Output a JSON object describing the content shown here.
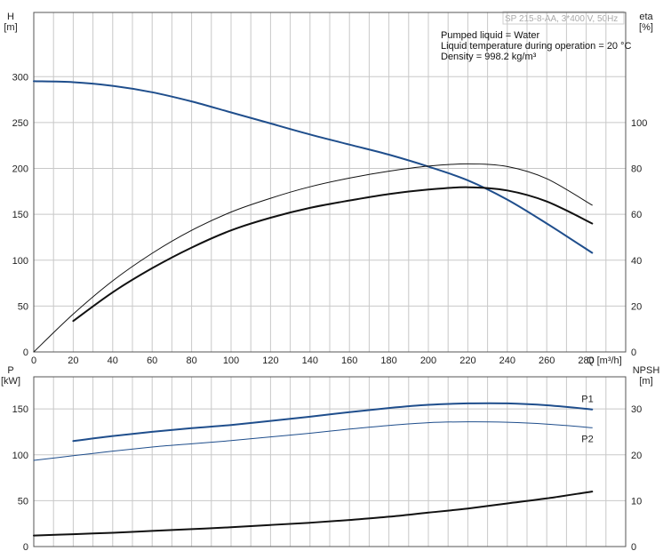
{
  "title_box": "SP 215-8-AA, 3*400 V, 50Hz",
  "info_lines": [
    "Pumped liquid = Water",
    "Liquid temperature during operation = 20 °C",
    "Density = 998.2 kg/m³"
  ],
  "colors": {
    "blue": "#1f4e8c",
    "black": "#111111",
    "grid": "#c8c8c8"
  },
  "chart_data": [
    {
      "type": "line",
      "x_label": "Q [m³/h]",
      "x_ticks": [
        0,
        20,
        40,
        60,
        80,
        100,
        120,
        140,
        160,
        180,
        200,
        220,
        240,
        260,
        280
      ],
      "xlim": [
        0,
        300
      ],
      "y_left": {
        "label_lines": [
          "H",
          "[m]"
        ],
        "ticks": [
          0,
          50,
          100,
          150,
          200,
          250,
          300
        ],
        "lim": [
          0,
          370
        ]
      },
      "y_right": {
        "label_lines": [
          "eta",
          "[%]"
        ],
        "ticks": [
          0,
          20,
          40,
          60,
          80,
          100
        ],
        "lim": [
          0,
          148
        ]
      },
      "series": [
        {
          "key": "H",
          "axis": "left",
          "color": "blue",
          "width": 2,
          "x": [
            0,
            20,
            40,
            60,
            80,
            100,
            120,
            140,
            160,
            180,
            200,
            220,
            240,
            260,
            283
          ],
          "y": [
            295,
            294,
            290,
            283,
            273,
            261,
            249,
            237,
            226,
            215,
            202,
            187,
            166,
            140,
            108
          ]
        },
        {
          "key": "eta_thin",
          "axis": "right",
          "color": "black",
          "width": 1,
          "x": [
            0,
            20,
            40,
            60,
            80,
            100,
            120,
            140,
            160,
            180,
            200,
            220,
            240,
            260,
            283
          ],
          "y": [
            0,
            16.5,
            31,
            43,
            53,
            61,
            67,
            72,
            75.8,
            78.8,
            81,
            82,
            80.8,
            75.5,
            64
          ]
        },
        {
          "key": "eta_thick",
          "axis": "right",
          "color": "black",
          "width": 2,
          "x": [
            20,
            40,
            60,
            80,
            100,
            120,
            140,
            160,
            180,
            200,
            220,
            240,
            260,
            283
          ],
          "y": [
            13.5,
            26,
            36.5,
            45.5,
            53,
            58.5,
            62.8,
            66,
            68.8,
            70.8,
            71.8,
            70.4,
            65.6,
            56
          ]
        }
      ]
    },
    {
      "type": "line",
      "x_ticks": [
        0,
        20,
        40,
        60,
        80,
        100,
        120,
        140,
        160,
        180,
        200,
        220,
        240,
        260,
        280
      ],
      "xlim": [
        0,
        300
      ],
      "y_left": {
        "label_lines": [
          "P",
          "[kW]"
        ],
        "ticks": [
          0,
          50,
          100,
          150
        ],
        "lim": [
          0,
          185
        ]
      },
      "y_right": {
        "label_lines": [
          "NPSH",
          "[m]"
        ],
        "ticks": [
          0,
          10,
          20,
          30
        ],
        "lim": [
          0,
          37
        ]
      },
      "series": [
        {
          "name": "P1",
          "axis": "left",
          "color": "blue",
          "width": 2,
          "x": [
            20,
            40,
            60,
            80,
            100,
            120,
            140,
            160,
            180,
            200,
            220,
            240,
            260,
            283
          ],
          "y": [
            115,
            120.5,
            125,
            129,
            132.5,
            137,
            141.5,
            146.5,
            151,
            154.5,
            156,
            156,
            154,
            149.5
          ]
        },
        {
          "name": "P2",
          "axis": "left",
          "color": "blue",
          "width": 1,
          "x": [
            0,
            20,
            40,
            60,
            80,
            100,
            120,
            140,
            160,
            180,
            200,
            220,
            240,
            260,
            283
          ],
          "y": [
            94,
            99,
            104,
            108.5,
            112,
            115.5,
            119.5,
            123.5,
            128,
            132,
            135,
            136,
            135.5,
            133.5,
            129.5
          ]
        },
        {
          "key": "NPSH",
          "axis": "right",
          "color": "black",
          "width": 2,
          "x": [
            0,
            20,
            40,
            60,
            80,
            100,
            120,
            140,
            160,
            180,
            200,
            220,
            240,
            260,
            283
          ],
          "y": [
            2.4,
            2.7,
            3.0,
            3.4,
            3.8,
            4.2,
            4.7,
            5.2,
            5.8,
            6.5,
            7.4,
            8.3,
            9.4,
            10.5,
            12
          ]
        }
      ]
    }
  ]
}
